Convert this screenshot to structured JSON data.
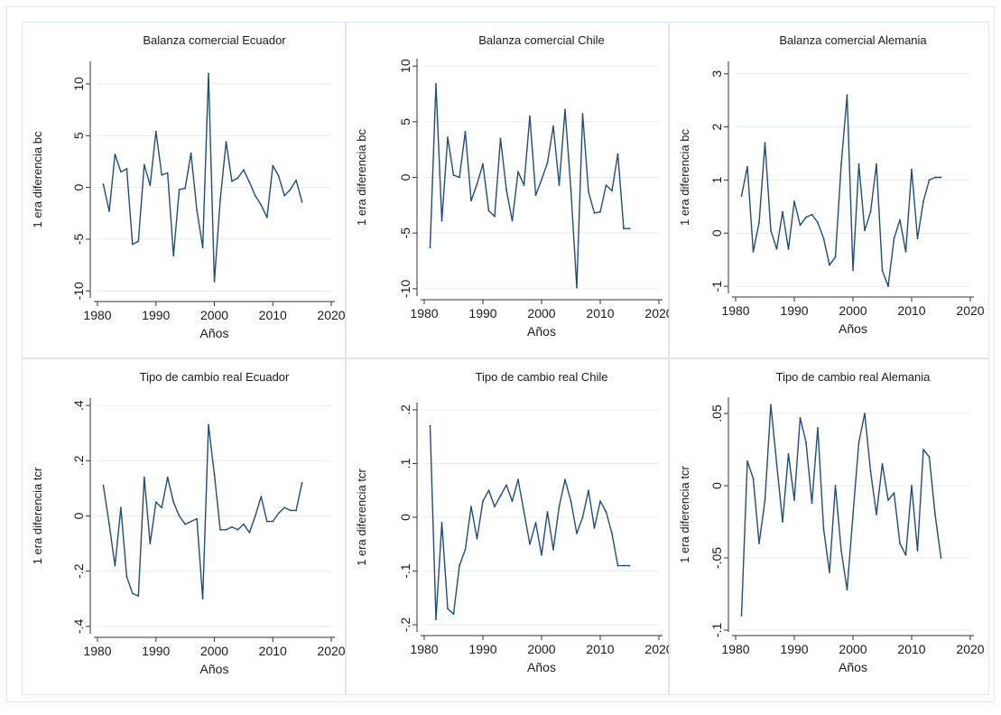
{
  "figure": {
    "background": "#ffffff",
    "panel_border": "#dfe6ec",
    "axis_color": "#333333",
    "grid_color": "#e6ecef",
    "line_color": "#1f4e79"
  },
  "chart_data": [
    {
      "type": "line",
      "title": "Balanza comercial  Ecuador",
      "xlabel": "Años",
      "ylabel": "1 era diferencia bc",
      "xlim": [
        1980,
        2020
      ],
      "ylim": [
        -10.5,
        12
      ],
      "xticks": [
        "1980",
        "1990",
        "2000",
        "2010",
        "2020"
      ],
      "yticks": [
        "-10",
        "-5",
        "0",
        "5",
        "10"
      ],
      "grid": true,
      "series": [
        {
          "x": [
            1981,
            1982,
            1983,
            1984,
            1985,
            1986,
            1987,
            1988,
            1989,
            1990,
            1991,
            1992,
            1993,
            1994,
            1995,
            1996,
            1997,
            1998,
            1999,
            2000,
            2001,
            2002,
            2003,
            2004,
            2005,
            2006,
            2007,
            2008,
            2009,
            2010,
            2011,
            2012,
            2013,
            2014,
            2015
          ],
          "y": [
            0.3,
            -2.3,
            3.2,
            1.5,
            1.8,
            -5.5,
            -5.2,
            2.2,
            0.2,
            5.4,
            1.2,
            1.4,
            -6.6,
            -0.2,
            -0.1,
            3.3,
            -2.2,
            -5.8,
            11.0,
            -9.1,
            -1.2,
            4.4,
            0.6,
            0.9,
            1.7,
            0.5,
            -0.8,
            -1.7,
            -2.9,
            2.1,
            1.1,
            -0.8,
            -0.2,
            0.7,
            -1.4
          ]
        }
      ]
    },
    {
      "type": "line",
      "title": "Balanza comercial  Chile",
      "xlabel": "Años",
      "ylabel": "1 era diferencia bc",
      "xlim": [
        1980,
        2020
      ],
      "ylim": [
        -10.5,
        10.5
      ],
      "xticks": [
        "1980",
        "1990",
        "2000",
        "2010",
        "2020"
      ],
      "yticks": [
        "-10",
        "-5",
        "0",
        "5",
        "10"
      ],
      "grid": true,
      "series": [
        {
          "x": [
            1981,
            1982,
            1983,
            1984,
            1985,
            1986,
            1987,
            1988,
            1989,
            1990,
            1991,
            1992,
            1993,
            1994,
            1995,
            1996,
            1997,
            1998,
            1999,
            2000,
            2001,
            2002,
            2003,
            2004,
            2005,
            2006,
            2007,
            2008,
            2009,
            2010,
            2011,
            2012,
            2013,
            2014,
            2015
          ],
          "y": [
            -6.3,
            8.4,
            -3.9,
            3.6,
            0.2,
            0.0,
            4.1,
            -2.1,
            -0.6,
            1.2,
            -3.0,
            -3.5,
            3.5,
            -1.1,
            -3.9,
            0.5,
            -0.7,
            5.5,
            -1.6,
            -0.2,
            1.3,
            4.6,
            -0.7,
            6.1,
            -1.1,
            -9.9,
            5.7,
            -1.3,
            -3.2,
            -3.1,
            -0.7,
            -1.2,
            2.1,
            -4.6,
            -4.6
          ]
        }
      ]
    },
    {
      "type": "line",
      "title": "Balanza comercial  Alemania",
      "xlabel": "Años",
      "ylabel": "1 era diferencia bc",
      "xlim": [
        1980,
        2020
      ],
      "ylim": [
        -1.1,
        3.2
      ],
      "xticks": [
        "1980",
        "1990",
        "2000",
        "2010",
        "2020"
      ],
      "yticks": [
        "-1",
        "0",
        "1",
        "2",
        "3"
      ],
      "grid": true,
      "series": [
        {
          "x": [
            1981,
            1982,
            1983,
            1984,
            1985,
            1986,
            1987,
            1988,
            1989,
            1990,
            1991,
            1992,
            1993,
            1994,
            1995,
            1996,
            1997,
            1998,
            1999,
            2000,
            2001,
            2002,
            2003,
            2004,
            2005,
            2006,
            2007,
            2008,
            2009,
            2010,
            2011,
            2012,
            2013,
            2014,
            2015
          ],
          "y": [
            0.7,
            1.25,
            -0.35,
            0.2,
            1.7,
            0.05,
            -0.3,
            0.4,
            -0.3,
            0.6,
            0.15,
            0.3,
            0.35,
            0.2,
            -0.1,
            -0.6,
            -0.45,
            1.3,
            2.6,
            -0.7,
            1.3,
            0.05,
            0.4,
            1.3,
            -0.7,
            -1.0,
            -0.1,
            0.25,
            -0.35,
            1.2,
            -0.1,
            0.6,
            1.0,
            1.05,
            1.05
          ]
        }
      ]
    },
    {
      "type": "line",
      "title": "Tipo de cambio real Ecuador",
      "xlabel": "Años",
      "ylabel": "1 era diferencia tcr",
      "xlim": [
        1980,
        2020
      ],
      "ylim": [
        -0.42,
        0.42
      ],
      "xticks": [
        "1980",
        "1990",
        "2000",
        "2010",
        "2020"
      ],
      "yticks": [
        "-.4",
        "-.2",
        "0",
        ".2",
        ".4"
      ],
      "grid": true,
      "series": [
        {
          "x": [
            1981,
            1982,
            1983,
            1984,
            1985,
            1986,
            1987,
            1988,
            1989,
            1990,
            1991,
            1992,
            1993,
            1994,
            1995,
            1996,
            1997,
            1998,
            1999,
            2000,
            2001,
            2002,
            2003,
            2004,
            2005,
            2006,
            2007,
            2008,
            2009,
            2010,
            2011,
            2012,
            2013,
            2014,
            2015
          ],
          "y": [
            0.11,
            -0.03,
            -0.18,
            0.03,
            -0.22,
            -0.28,
            -0.29,
            0.14,
            -0.1,
            0.05,
            0.03,
            0.14,
            0.05,
            0.0,
            -0.03,
            -0.02,
            -0.01,
            -0.3,
            0.33,
            0.15,
            -0.05,
            -0.05,
            -0.04,
            -0.05,
            -0.03,
            -0.06,
            0.0,
            0.07,
            -0.02,
            -0.02,
            0.01,
            0.03,
            0.02,
            0.02,
            0.12
          ]
        }
      ]
    },
    {
      "type": "line",
      "title": "Tipo de cambio real Chile",
      "xlabel": "Años",
      "ylabel": "1 era diferencia tcr",
      "xlim": [
        1980,
        2020
      ],
      "ylim": [
        -0.21,
        0.21
      ],
      "xticks": [
        "1980",
        "1990",
        "2000",
        "2010",
        "2020"
      ],
      "yticks": [
        "-.2",
        "-.1",
        "0",
        ".1",
        ".2"
      ],
      "grid": true,
      "series": [
        {
          "x": [
            1981,
            1982,
            1983,
            1984,
            1985,
            1986,
            1987,
            1988,
            1989,
            1990,
            1991,
            1992,
            1993,
            1994,
            1995,
            1996,
            1997,
            1998,
            1999,
            2000,
            2001,
            2002,
            2003,
            2004,
            2005,
            2006,
            2007,
            2008,
            2009,
            2010,
            2011,
            2012,
            2013,
            2014,
            2015
          ],
          "y": [
            0.17,
            -0.19,
            -0.01,
            -0.17,
            -0.18,
            -0.09,
            -0.06,
            0.02,
            -0.04,
            0.03,
            0.05,
            0.02,
            0.04,
            0.06,
            0.03,
            0.07,
            0.01,
            -0.05,
            -0.01,
            -0.07,
            0.01,
            -0.06,
            0.02,
            0.07,
            0.03,
            -0.03,
            0.0,
            0.05,
            -0.02,
            0.03,
            0.01,
            -0.03,
            -0.09,
            -0.09,
            -0.09
          ]
        }
      ]
    },
    {
      "type": "line",
      "title": "Tipo de cambio real Alemania",
      "xlabel": "Años",
      "ylabel": "1 era diferencia tcr",
      "xlim": [
        1980,
        2020
      ],
      "ylim": [
        -0.1,
        0.06
      ],
      "xticks": [
        "1980",
        "1990",
        "2000",
        "2010",
        "2020"
      ],
      "yticks": [
        "-.1",
        "-.05",
        "0",
        ".05"
      ],
      "grid": true,
      "series": [
        {
          "x": [
            1981,
            1982,
            1983,
            1984,
            1985,
            1986,
            1987,
            1988,
            1989,
            1990,
            1991,
            1992,
            1993,
            1994,
            1995,
            1996,
            1997,
            1998,
            1999,
            2000,
            2001,
            2002,
            2003,
            2004,
            2005,
            2006,
            2007,
            2008,
            2009,
            2010,
            2011,
            2012,
            2013,
            2014,
            2015
          ],
          "y": [
            -0.09,
            0.017,
            0.005,
            -0.04,
            -0.01,
            0.056,
            0.015,
            -0.025,
            0.022,
            -0.01,
            0.047,
            0.03,
            -0.012,
            0.04,
            -0.03,
            -0.06,
            0.0,
            -0.045,
            -0.072,
            -0.02,
            0.03,
            0.05,
            0.01,
            -0.02,
            0.015,
            -0.01,
            -0.005,
            -0.04,
            -0.048,
            0.0,
            -0.045,
            0.025,
            0.02,
            -0.02,
            -0.05
          ]
        }
      ]
    }
  ]
}
